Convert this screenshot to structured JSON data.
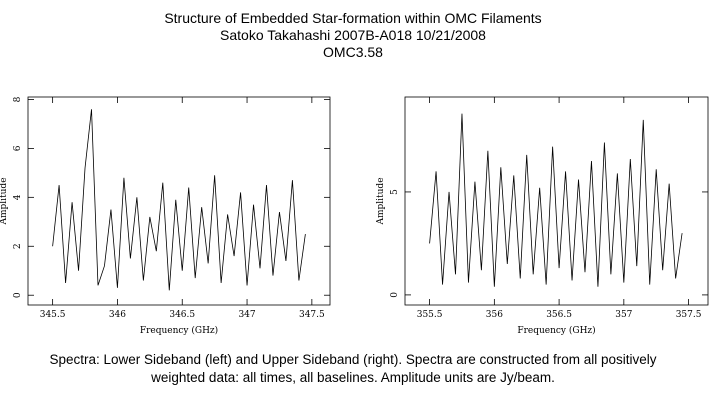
{
  "header": {
    "lines": [
      "Structure of Embedded Star-formation within OMC Filaments",
      "Satoko Takahashi   2007B-A018   10/21/2008",
      "OMC3.58"
    ]
  },
  "caption": {
    "lines": [
      "Spectra: Lower Sideband (left) and Upper Sideband (right).  Spectra are constructed from all positively",
      "weighted data: all times, all baselines.  Amplitude units are Jy/beam."
    ]
  },
  "chart_data": [
    {
      "type": "line",
      "x_label": "Frequency (GHz)",
      "y_label": "Amplitude",
      "color": "#000000",
      "xlim": [
        345.31,
        347.64
      ],
      "xticks": [
        345.5,
        346,
        346.5,
        347,
        347.5
      ],
      "ylim": [
        -0.4,
        8.1
      ],
      "yticks": [
        0,
        2,
        4,
        6,
        8
      ],
      "x": [
        345.5,
        345.55,
        345.6,
        345.65,
        345.7,
        345.75,
        345.8,
        345.85,
        345.9,
        345.95,
        346,
        346.05,
        346.1,
        346.15,
        346.2,
        346.25,
        346.3,
        346.35,
        346.4,
        346.45,
        346.5,
        346.55,
        346.6,
        346.65,
        346.7,
        346.75,
        346.8,
        346.85,
        346.9,
        346.95,
        347,
        347.05,
        347.1,
        347.15,
        347.2,
        347.25,
        347.3,
        347.35,
        347.4,
        347.45
      ],
      "values": [
        2,
        4.5,
        0.5,
        3.8,
        1,
        5.2,
        7.6,
        0.4,
        1.2,
        3.5,
        0.3,
        4.8,
        1.5,
        4,
        0.6,
        3.2,
        1.8,
        4.6,
        0.2,
        3.9,
        1,
        4.4,
        0.7,
        3.6,
        1.3,
        4.9,
        0.5,
        3.3,
        1.6,
        4.2,
        0.4,
        3.7,
        1.1,
        4.5,
        0.8,
        3.4,
        1.4,
        4.7,
        0.6,
        2.5
      ]
    },
    {
      "type": "line",
      "x_label": "Frequency (GHz)",
      "y_label": "Amplitude",
      "color": "#000000",
      "xlim": [
        355.31,
        357.65
      ],
      "xticks": [
        355.5,
        356,
        356.5,
        357,
        357.5
      ],
      "ylim": [
        -0.49,
        9.61
      ],
      "yticks": [
        0,
        5
      ],
      "x": [
        355.5,
        355.55,
        355.6,
        355.65,
        355.7,
        355.75,
        355.8,
        355.85,
        355.9,
        355.95,
        356,
        356.05,
        356.1,
        356.15,
        356.2,
        356.25,
        356.3,
        356.35,
        356.4,
        356.45,
        356.5,
        356.55,
        356.6,
        356.65,
        356.7,
        356.75,
        356.8,
        356.85,
        356.9,
        356.95,
        357,
        357.05,
        357.1,
        357.15,
        357.2,
        357.25,
        357.3,
        357.35,
        357.4,
        357.45
      ],
      "values": [
        2.5,
        6,
        0.5,
        5,
        1,
        8.8,
        0.6,
        5.5,
        1.2,
        7,
        0.4,
        6.2,
        1.5,
        5.8,
        0.8,
        6.8,
        1,
        5.2,
        0.5,
        7.2,
        1.3,
        6,
        0.7,
        5.6,
        1.1,
        6.5,
        0.4,
        7.4,
        1,
        5.9,
        0.6,
        6.6,
        1.4,
        8.5,
        0.5,
        6.1,
        1.2,
        5.4,
        0.8,
        3
      ]
    }
  ]
}
